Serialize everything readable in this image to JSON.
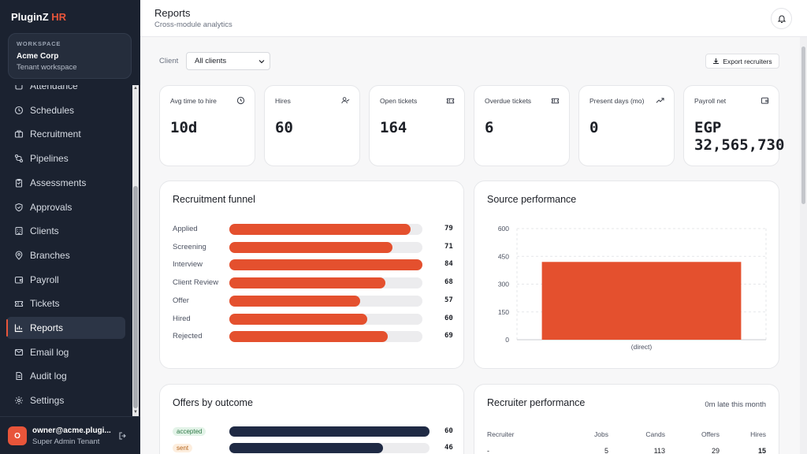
{
  "brand": {
    "name": "PluginZ",
    "suffix": "HR"
  },
  "workspace": {
    "label": "WORKSPACE",
    "name": "Acme Corp",
    "sub": "Tenant workspace"
  },
  "nav": [
    {
      "label": "Attendance",
      "icon": "attendance-icon"
    },
    {
      "label": "Schedules",
      "icon": "clock-icon"
    },
    {
      "label": "Recruitment",
      "icon": "briefcase-icon"
    },
    {
      "label": "Pipelines",
      "icon": "pipeline-icon"
    },
    {
      "label": "Assessments",
      "icon": "clipboard-icon"
    },
    {
      "label": "Approvals",
      "icon": "shield-check-icon"
    },
    {
      "label": "Clients",
      "icon": "building-icon"
    },
    {
      "label": "Branches",
      "icon": "map-pin-icon"
    },
    {
      "label": "Payroll",
      "icon": "wallet-icon"
    },
    {
      "label": "Tickets",
      "icon": "ticket-icon"
    },
    {
      "label": "Reports",
      "icon": "bar-chart-icon",
      "active": true
    },
    {
      "label": "Email log",
      "icon": "mail-icon"
    },
    {
      "label": "Audit log",
      "icon": "audit-icon"
    },
    {
      "label": "Settings",
      "icon": "gear-icon"
    }
  ],
  "user": {
    "initial": "O",
    "email": "owner@acme.plugi...",
    "role": "Super Admin Tenant"
  },
  "header": {
    "title": "Reports",
    "subtitle": "Cross-module analytics"
  },
  "filters": {
    "client_label": "Client",
    "client_value": "All clients",
    "export_label": "Export recruiters"
  },
  "kpis": [
    {
      "label": "Avg time to hire",
      "value": "10d",
      "icon": "clock-icon"
    },
    {
      "label": "Hires",
      "value": "60",
      "icon": "user-check-icon"
    },
    {
      "label": "Open tickets",
      "value": "164",
      "icon": "ticket-icon"
    },
    {
      "label": "Overdue tickets",
      "value": "6",
      "icon": "ticket-icon"
    },
    {
      "label": "Present days (mo)",
      "value": "0",
      "icon": "trending-up-icon"
    },
    {
      "label": "Payroll net",
      "value": "EGP\n32,565,730",
      "icon": "wallet-icon"
    }
  ],
  "funnel": {
    "title": "Recruitment funnel",
    "max": 84,
    "rows": [
      {
        "label": "Applied",
        "value": 79
      },
      {
        "label": "Screening",
        "value": 71
      },
      {
        "label": "Interview",
        "value": 84
      },
      {
        "label": "Client Review",
        "value": 68
      },
      {
        "label": "Offer",
        "value": 57
      },
      {
        "label": "Hired",
        "value": 60
      },
      {
        "label": "Rejected",
        "value": 69
      }
    ]
  },
  "source": {
    "title": "Source performance"
  },
  "chart_data": {
    "type": "bar",
    "categories": [
      "(direct)"
    ],
    "values": [
      420
    ],
    "ylim": [
      0,
      600
    ],
    "yticks": [
      0,
      150,
      300,
      450,
      600
    ],
    "grid": true,
    "color": "#e4502e"
  },
  "offers": {
    "title": "Offers by outcome",
    "max": 60,
    "rows": [
      {
        "label": "accepted",
        "value": 60,
        "bg": "#e3f3e8",
        "fg": "#2f7a47"
      },
      {
        "label": "sent",
        "value": 46,
        "bg": "#fdeede",
        "fg": "#b5651d"
      }
    ]
  },
  "recruiters": {
    "title": "Recruiter performance",
    "note": "0m late this month",
    "headers": [
      "Recruiter",
      "Jobs",
      "Cands",
      "Offers",
      "Hires"
    ],
    "row": [
      "-",
      "5",
      "113",
      "29",
      "15"
    ]
  }
}
